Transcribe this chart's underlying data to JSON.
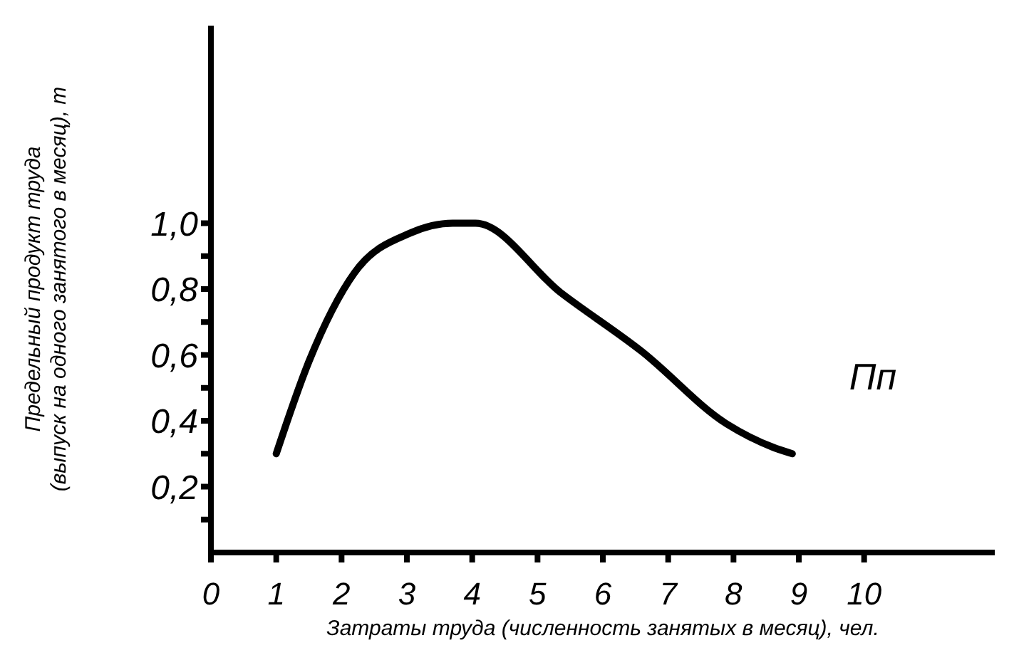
{
  "chart_data": {
    "type": "line",
    "xlabel": "Затраты труда (численность занятых в месяц), чел.",
    "ylabel": "Предельный продукт труда (выпуск на одного занятого в месяц), т",
    "x": [
      1,
      1.5,
      2.2,
      3.05,
      3.7,
      4.05,
      5.35,
      6.6,
      7.9,
      8.6,
      8.9
    ],
    "series": [
      {
        "name": "Пп",
        "color": "#000000",
        "values": [
          0.3,
          0.58,
          0.85,
          0.97,
          1.0,
          1.0,
          0.79,
          0.61,
          0.39,
          0.32,
          0.3
        ]
      }
    ],
    "xlim": [
      0,
      12
    ],
    "xticks": [
      0,
      1,
      2,
      3,
      4,
      5,
      6,
      7,
      8,
      9,
      10
    ],
    "ylim": [
      0,
      1.6
    ],
    "yticks": [
      {
        "value": 0.1,
        "label": null
      },
      {
        "value": 0.2,
        "label": "0,2"
      },
      {
        "value": 0.3,
        "label": null
      },
      {
        "value": 0.4,
        "label": "0,4"
      },
      {
        "value": 0.5,
        "label": null
      },
      {
        "value": 0.6,
        "label": "0,6"
      },
      {
        "value": 0.7,
        "label": null
      },
      {
        "value": 0.8,
        "label": "0,8"
      },
      {
        "value": 0.9,
        "label": null
      },
      {
        "value": 1.0,
        "label": "1,0"
      }
    ],
    "grid": false,
    "marker": "none",
    "line_style": "solid"
  }
}
